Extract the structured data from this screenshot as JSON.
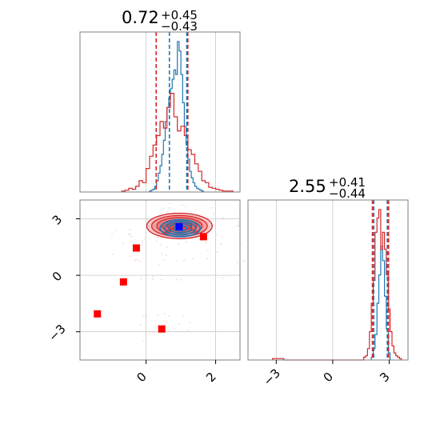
{
  "chart_data": [
    {
      "type": "histogram",
      "panel": "top-left",
      "title_value": "0.72",
      "title_plus": "+0.45",
      "title_minus": "−0.43",
      "xlim": [
        -1.9,
        2.7
      ],
      "x_tick_labels": [],
      "y_tick_labels": [],
      "grid": true,
      "series": [
        {
          "name": "",
          "color": "#1f77b4",
          "bin_edges": [
            0.1,
            0.15,
            0.2,
            0.25,
            0.3,
            0.35,
            0.4,
            0.45,
            0.5,
            0.55,
            0.6,
            0.65,
            0.7,
            0.75,
            0.8,
            0.85,
            0.9,
            0.95,
            1.0,
            1.05,
            1.1,
            1.15,
            1.2,
            1.25,
            1.3,
            1.35,
            1.4,
            1.45,
            1.5,
            1.55,
            1.6,
            1.65
          ],
          "counts": [
            1,
            2,
            3,
            6,
            12,
            20,
            28,
            40,
            55,
            75,
            90,
            100,
            110,
            120,
            130,
            125,
            160,
            150,
            125,
            95,
            70,
            50,
            35,
            22,
            15,
            10,
            6,
            4,
            3,
            2,
            1
          ]
        },
        {
          "name": "",
          "color": "#d62728",
          "bin_edges": [
            -0.7,
            -0.6,
            -0.5,
            -0.4,
            -0.3,
            -0.2,
            -0.1,
            0.0,
            0.1,
            0.2,
            0.3,
            0.4,
            0.5,
            0.6,
            0.7,
            0.8,
            0.9,
            1.0,
            1.1,
            1.2,
            1.3,
            1.4,
            1.5,
            1.6,
            1.7,
            1.8,
            1.9,
            2.0,
            2.1,
            2.2,
            2.3,
            2.4,
            2.5
          ],
          "counts": [
            1,
            2,
            4,
            3,
            6,
            12,
            10,
            25,
            38,
            50,
            60,
            75,
            68,
            90,
            105,
            80,
            65,
            70,
            60,
            45,
            40,
            30,
            22,
            12,
            10,
            5,
            4,
            3,
            2,
            1,
            1,
            1
          ]
        }
      ],
      "quantile_lines": [
        {
          "color": "#1f77b4",
          "values": [
            0.67,
            1.17
          ]
        },
        {
          "color": "#d62728",
          "values": [
            0.29,
            1.2
          ]
        }
      ]
    },
    {
      "type": "scatter",
      "panel": "bottom-left",
      "xlim": [
        -1.9,
        2.7
      ],
      "ylim": [
        -4.5,
        4.0
      ],
      "x_ticks": [
        0,
        2
      ],
      "x_tick_labels": [
        "0",
        "2"
      ],
      "y_ticks": [
        -3,
        0,
        3
      ],
      "y_tick_labels": [
        "−3",
        "0",
        "3"
      ],
      "grid": true,
      "contours": [
        {
          "color": "#d62728",
          "center": [
            0.96,
            2.62
          ],
          "radii_x": [
            1.88,
            1.6,
            1.3,
            1.0,
            0.7
          ],
          "radii_y": [
            1.36,
            1.11,
            0.9,
            0.68,
            0.45
          ]
        },
        {
          "color": "#1f77b4",
          "center": [
            0.98,
            2.5
          ],
          "radii_x": [
            1.15,
            0.9,
            0.65,
            0.38
          ],
          "radii_y": [
            0.9,
            0.7,
            0.5,
            0.28
          ]
        }
      ],
      "markers": {
        "color": "#ff0000",
        "points": [
          {
            "x": 1.65,
            "y": 2.05
          },
          {
            "x": -0.28,
            "y": 1.45
          },
          {
            "x": -0.65,
            "y": -0.35
          },
          {
            "x": -1.4,
            "y": -2.05
          },
          {
            "x": 0.45,
            "y": -2.85
          }
        ]
      },
      "truth_point": {
        "color": "#0000ff",
        "x": 0.95,
        "y": 2.58
      }
    },
    {
      "type": "histogram",
      "panel": "bottom-right",
      "title_value": "2.55",
      "title_plus": "+0.41",
      "title_minus": "−0.44",
      "xlim": [
        -4.5,
        4.0
      ],
      "x_ticks": [
        -3,
        0,
        3
      ],
      "x_tick_labels": [
        "−3",
        "0",
        "3"
      ],
      "y_tick_labels": [],
      "grid": true,
      "series": [
        {
          "name": "",
          "color": "#1f77b4",
          "bin_edges": [
            2.05,
            2.15,
            2.25,
            2.35,
            2.45,
            2.55,
            2.65,
            2.75,
            2.85,
            2.95,
            3.05
          ],
          "counts": [
            2,
            8,
            18,
            40,
            60,
            80,
            70,
            45,
            22,
            5
          ]
        },
        {
          "name": "",
          "color": "#d62728",
          "bin_edges": [
            -3.2,
            -2.9,
            -2.6,
            -2.3,
            -2.0,
            -1.7,
            1.65,
            1.75,
            1.85,
            1.95,
            2.05,
            2.15,
            2.25,
            2.35,
            2.45,
            2.55,
            2.65,
            2.75,
            2.85,
            2.95,
            3.05,
            3.15,
            3.25,
            3.35,
            3.45,
            3.55,
            3.65
          ],
          "counts": [
            1,
            1,
            0,
            0,
            0,
            0,
            2,
            3,
            8,
            20,
            40,
            56,
            90,
            100,
            106,
            78,
            90,
            78,
            60,
            36,
            20,
            10,
            5,
            3,
            2,
            1
          ]
        }
      ],
      "quantile_lines": [
        {
          "color": "#1f77b4",
          "values": [
            2.18,
            2.9
          ]
        },
        {
          "color": "#d62728",
          "values": [
            2.11,
            2.96
          ]
        }
      ]
    }
  ]
}
